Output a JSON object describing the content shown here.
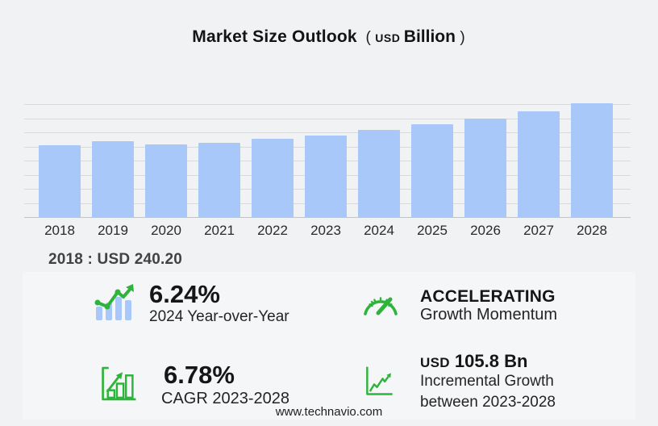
{
  "title": {
    "main": "Market Size Outlook",
    "paren_open": "(",
    "currency": "USD",
    "unit": "Billion",
    "paren_close": ")"
  },
  "chart_data": {
    "type": "bar",
    "title": "Market Size Outlook (USD Billion)",
    "categories": [
      "2018",
      "2019",
      "2020",
      "2021",
      "2022",
      "2023",
      "2024",
      "2025",
      "2026",
      "2027",
      "2028"
    ],
    "values": [
      240.2,
      253.4,
      240.6,
      246.2,
      261.6,
      272.3,
      289.3,
      309.2,
      328.3,
      352.5,
      378.1
    ],
    "xlabel": "",
    "ylabel": "",
    "ylim": [
      0,
      400
    ],
    "grid": true,
    "gridline_count": 9,
    "legend": "none",
    "bar_color": "#a9c8fa"
  },
  "annotation": {
    "base_year_value": "2018 : USD  240.20"
  },
  "stats": [
    {
      "icon": "trend-bars-icon",
      "value_text": "6.24%",
      "label_lines": [
        "2024 Year-over-Year"
      ]
    },
    {
      "icon": "gauge-icon",
      "value_text": "ACCELERATING",
      "label_lines": [
        "Growth Momentum"
      ]
    },
    {
      "icon": "growth-bars-outline-icon",
      "value_text": "6.78%",
      "label_lines": [
        "CAGR 2023-2028"
      ]
    },
    {
      "icon": "axes-trend-arrow-icon",
      "value_prefix": "USD",
      "value_text": "105.8 Bn",
      "label_lines": [
        "Incremental Growth",
        "between 2023-2028"
      ]
    }
  ],
  "footer": {
    "website": "www.technavio.com"
  },
  "colors": {
    "background": "#f1f2f4",
    "bar": "#a9c8fa",
    "accent_green": "#2eb43a",
    "grid": "#d9d9db",
    "baseline": "#c3c3c6",
    "text_dark": "#161616"
  }
}
